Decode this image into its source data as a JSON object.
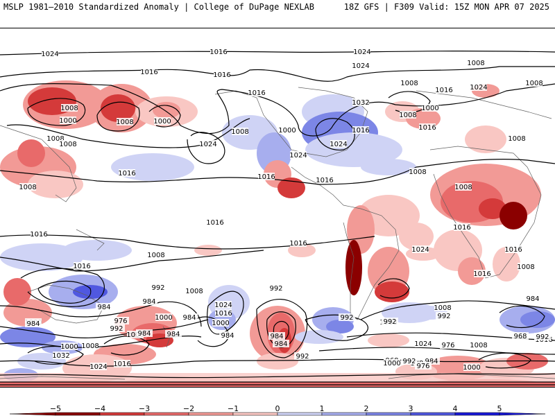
{
  "header": {
    "left_title": "MSLP 1981–2010 Standardized Anomaly | College of DuPage NEXLAB",
    "right_title": "18Z GFS | F309 Valid: 15Z MON APR 07 2025"
  },
  "colors": {
    "neg5": "#8b0000",
    "neg4": "#d43a3a",
    "neg3": "#e86a6a",
    "neg2": "#f29a96",
    "neg1": "#f9c7c3",
    "zero": "#ffffff",
    "pos1": "#cfd3f5",
    "pos2": "#a7aeee",
    "pos3": "#7c86e6",
    "pos4": "#5058e0",
    "pos5": "#1a1ad8",
    "land": "#606060",
    "contour": "#000000"
  },
  "colorbar": {
    "ticks": [
      "−5",
      "−4",
      "−3",
      "−2",
      "−1",
      "0",
      "1",
      "2",
      "3",
      "4",
      "5"
    ]
  },
  "contour_labels": [
    "1024",
    "1016",
    "1024",
    "1024",
    "1008",
    "1016",
    "1016",
    "1016",
    "1008",
    "1008",
    "1000",
    "1008",
    "1000",
    "1008",
    "1000",
    "1008",
    "1000",
    "1016",
    "1016",
    "1008",
    "1024",
    "1032",
    "1024",
    "1024",
    "1016",
    "1008",
    "1024",
    "1016",
    "1008",
    "1008",
    "1016",
    "1008",
    "1016",
    "1016",
    "1008",
    "1016",
    "1008",
    "1016",
    "1016",
    "1024",
    "1016",
    "1016",
    "1008",
    "1016",
    "1008",
    "992",
    "1008",
    "1024",
    "1016",
    "1000",
    "992",
    "984",
    "976",
    "984",
    "992",
    "1000",
    "1008",
    "1008",
    "1000",
    "1008",
    "1000",
    "984",
    "1032",
    "1024",
    "1016",
    "984",
    "984",
    "992",
    "992",
    "992",
    "968",
    "984",
    "984",
    "1000",
    "1008",
    "984",
    "976",
    "968",
    "1016",
    "992",
    "992",
    "1000",
    "984",
    "992",
    "1024",
    "984",
    "976",
    "1000",
    "1000",
    "984"
  ]
}
